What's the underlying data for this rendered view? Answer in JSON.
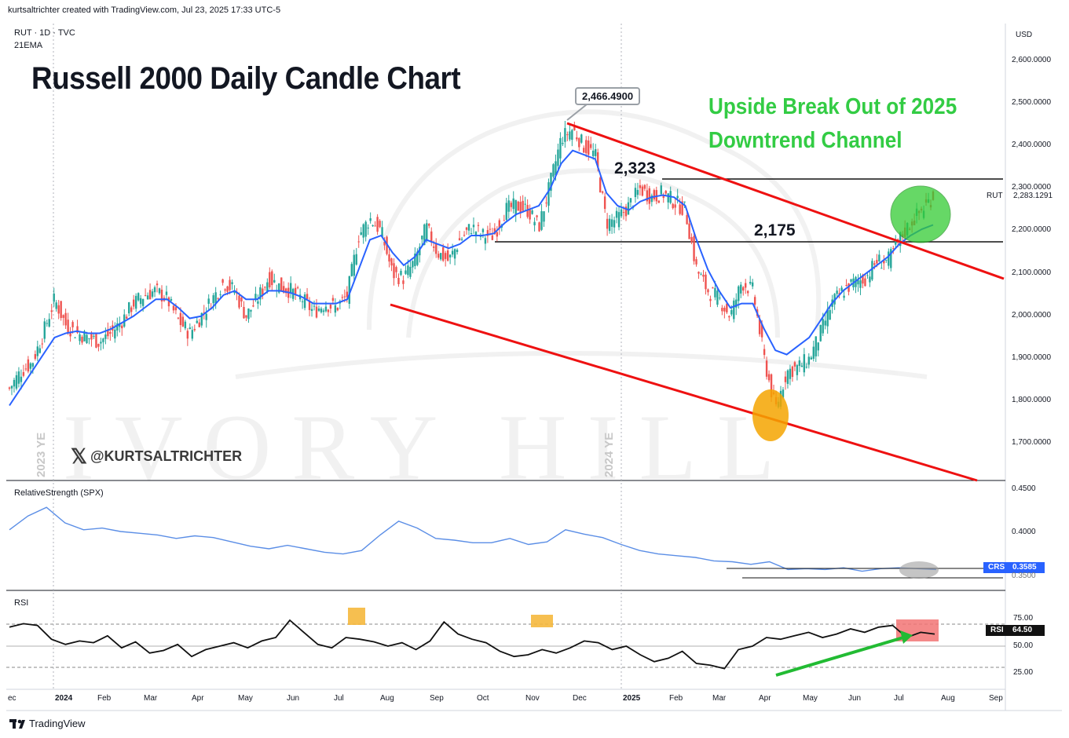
{
  "header": {
    "attribution": "kurtsaltrichter created with TradingView.com, Jul 23, 2025 17:33 UTC-5",
    "symbol_info": "RUT · 1D · TVC",
    "indicator": "21EMA"
  },
  "chart_data": {
    "type": "candlestick",
    "title": "Russell 2000 Daily Candle Chart",
    "annotations": {
      "breakout_line1": "Upside Break Out of 2025",
      "breakout_line2": "Downtrend Channel",
      "peak_callout": "2,466.4900",
      "level_high_label": "2,323",
      "level_low_label": "2,175",
      "handle": "@KURTSALTRICHTER",
      "year_end_2023": "2023 YE",
      "year_end_2024": "2024 YE"
    },
    "levels": [
      2323,
      2175
    ],
    "price_axis": {
      "currency": "USD",
      "ticks": [
        "2,600.0000",
        "2,500.0000",
        "2,400.0000",
        "2,300.0000",
        "2,200.0000",
        "2,100.0000",
        "2,000.0000",
        "1,900.0000",
        "1,800.0000",
        "1,700.0000"
      ],
      "range": [
        1640,
        2640
      ]
    },
    "last_price": {
      "symbol": "RUT",
      "value": "2,283.1291"
    },
    "x_axis_labels": [
      "ec",
      "2024",
      "Feb",
      "Mar",
      "Apr",
      "May",
      "Jun",
      "Jul",
      "Aug",
      "Sep",
      "Oct",
      "Nov",
      "Dec",
      "2025",
      "Feb",
      "Mar",
      "Apr",
      "May",
      "Jun",
      "Jul",
      "Aug",
      "Sep"
    ],
    "price_series": [
      1830,
      1870,
      1890,
      1960,
      2040,
      1980,
      1960,
      1950,
      1940,
      1960,
      1990,
      2030,
      2050,
      2060,
      2040,
      1990,
      1960,
      2000,
      2040,
      2080,
      2060,
      2000,
      2040,
      2090,
      2070,
      2060,
      2040,
      2010,
      2030,
      2020,
      2050,
      2190,
      2230,
      2200,
      2100,
      2090,
      2130,
      2210,
      2150,
      2130,
      2180,
      2210,
      2190,
      2190,
      2250,
      2260,
      2250,
      2210,
      2310,
      2420,
      2440,
      2400,
      2380,
      2220,
      2230,
      2260,
      2300,
      2280,
      2290,
      2270,
      2250,
      2110,
      2060,
      2040,
      2000,
      2080,
      2060,
      1900,
      1780,
      1870,
      1880,
      1900,
      1960,
      2030,
      2060,
      2080,
      2090,
      2130,
      2130,
      2180,
      2220,
      2250,
      2283
    ],
    "ema_series": [
      1790,
      1830,
      1870,
      1910,
      1950,
      1960,
      1965,
      1960,
      1960,
      1970,
      1985,
      2000,
      2020,
      2040,
      2040,
      2020,
      1995,
      2000,
      2020,
      2050,
      2060,
      2040,
      2040,
      2060,
      2060,
      2055,
      2045,
      2030,
      2030,
      2030,
      2040,
      2110,
      2180,
      2190,
      2150,
      2120,
      2140,
      2180,
      2170,
      2160,
      2170,
      2190,
      2190,
      2195,
      2220,
      2240,
      2250,
      2260,
      2300,
      2360,
      2390,
      2380,
      2370,
      2290,
      2260,
      2250,
      2270,
      2280,
      2285,
      2280,
      2260,
      2180,
      2110,
      2060,
      2020,
      2030,
      2030,
      1970,
      1920,
      1910,
      1930,
      1950,
      1990,
      2030,
      2060,
      2080,
      2100,
      2120,
      2140,
      2170,
      2190,
      2205,
      2215
    ],
    "relative_strength": {
      "label": "RelativeStrength (SPX)",
      "ticks": [
        "0.4500",
        "0.4000"
      ],
      "tag_name": "CRS",
      "tag_value": "0.3585",
      "axis_partial": "0.3500",
      "series": [
        0.402,
        0.418,
        0.428,
        0.41,
        0.402,
        0.404,
        0.4,
        0.398,
        0.396,
        0.392,
        0.395,
        0.393,
        0.388,
        0.383,
        0.38,
        0.384,
        0.38,
        0.376,
        0.374,
        0.378,
        0.396,
        0.412,
        0.404,
        0.392,
        0.39,
        0.387,
        0.387,
        0.392,
        0.385,
        0.388,
        0.402,
        0.397,
        0.393,
        0.385,
        0.378,
        0.374,
        0.372,
        0.37,
        0.366,
        0.365,
        0.362,
        0.365,
        0.356,
        0.357,
        0.356,
        0.358,
        0.354,
        0.357,
        0.358,
        0.357,
        0.356
      ]
    },
    "rsi": {
      "label": "RSI",
      "ticks": [
        "75.00",
        "50.00",
        "25.00"
      ],
      "tag_name": "RSI",
      "tag_value": "64.50",
      "series": [
        72,
        76,
        74,
        58,
        52,
        56,
        54,
        62,
        48,
        55,
        42,
        45,
        52,
        38,
        46,
        50,
        54,
        48,
        56,
        60,
        80,
        66,
        52,
        48,
        60,
        58,
        55,
        50,
        54,
        46,
        56,
        78,
        64,
        58,
        54,
        44,
        38,
        40,
        46,
        42,
        48,
        56,
        54,
        46,
        50,
        40,
        32,
        36,
        44,
        30,
        28,
        24,
        46,
        50,
        60,
        58,
        62,
        66,
        60,
        64,
        70,
        66,
        72,
        74,
        60,
        66,
        64
      ]
    }
  },
  "footer": {
    "brand": "TradingView"
  },
  "colors": {
    "candle_up": "#26a69a",
    "candle_down": "#ef5350",
    "ema": "#2962ff",
    "trend": "#ee1111",
    "rs_line": "#5b8ee6",
    "green_text": "#33cc44"
  }
}
